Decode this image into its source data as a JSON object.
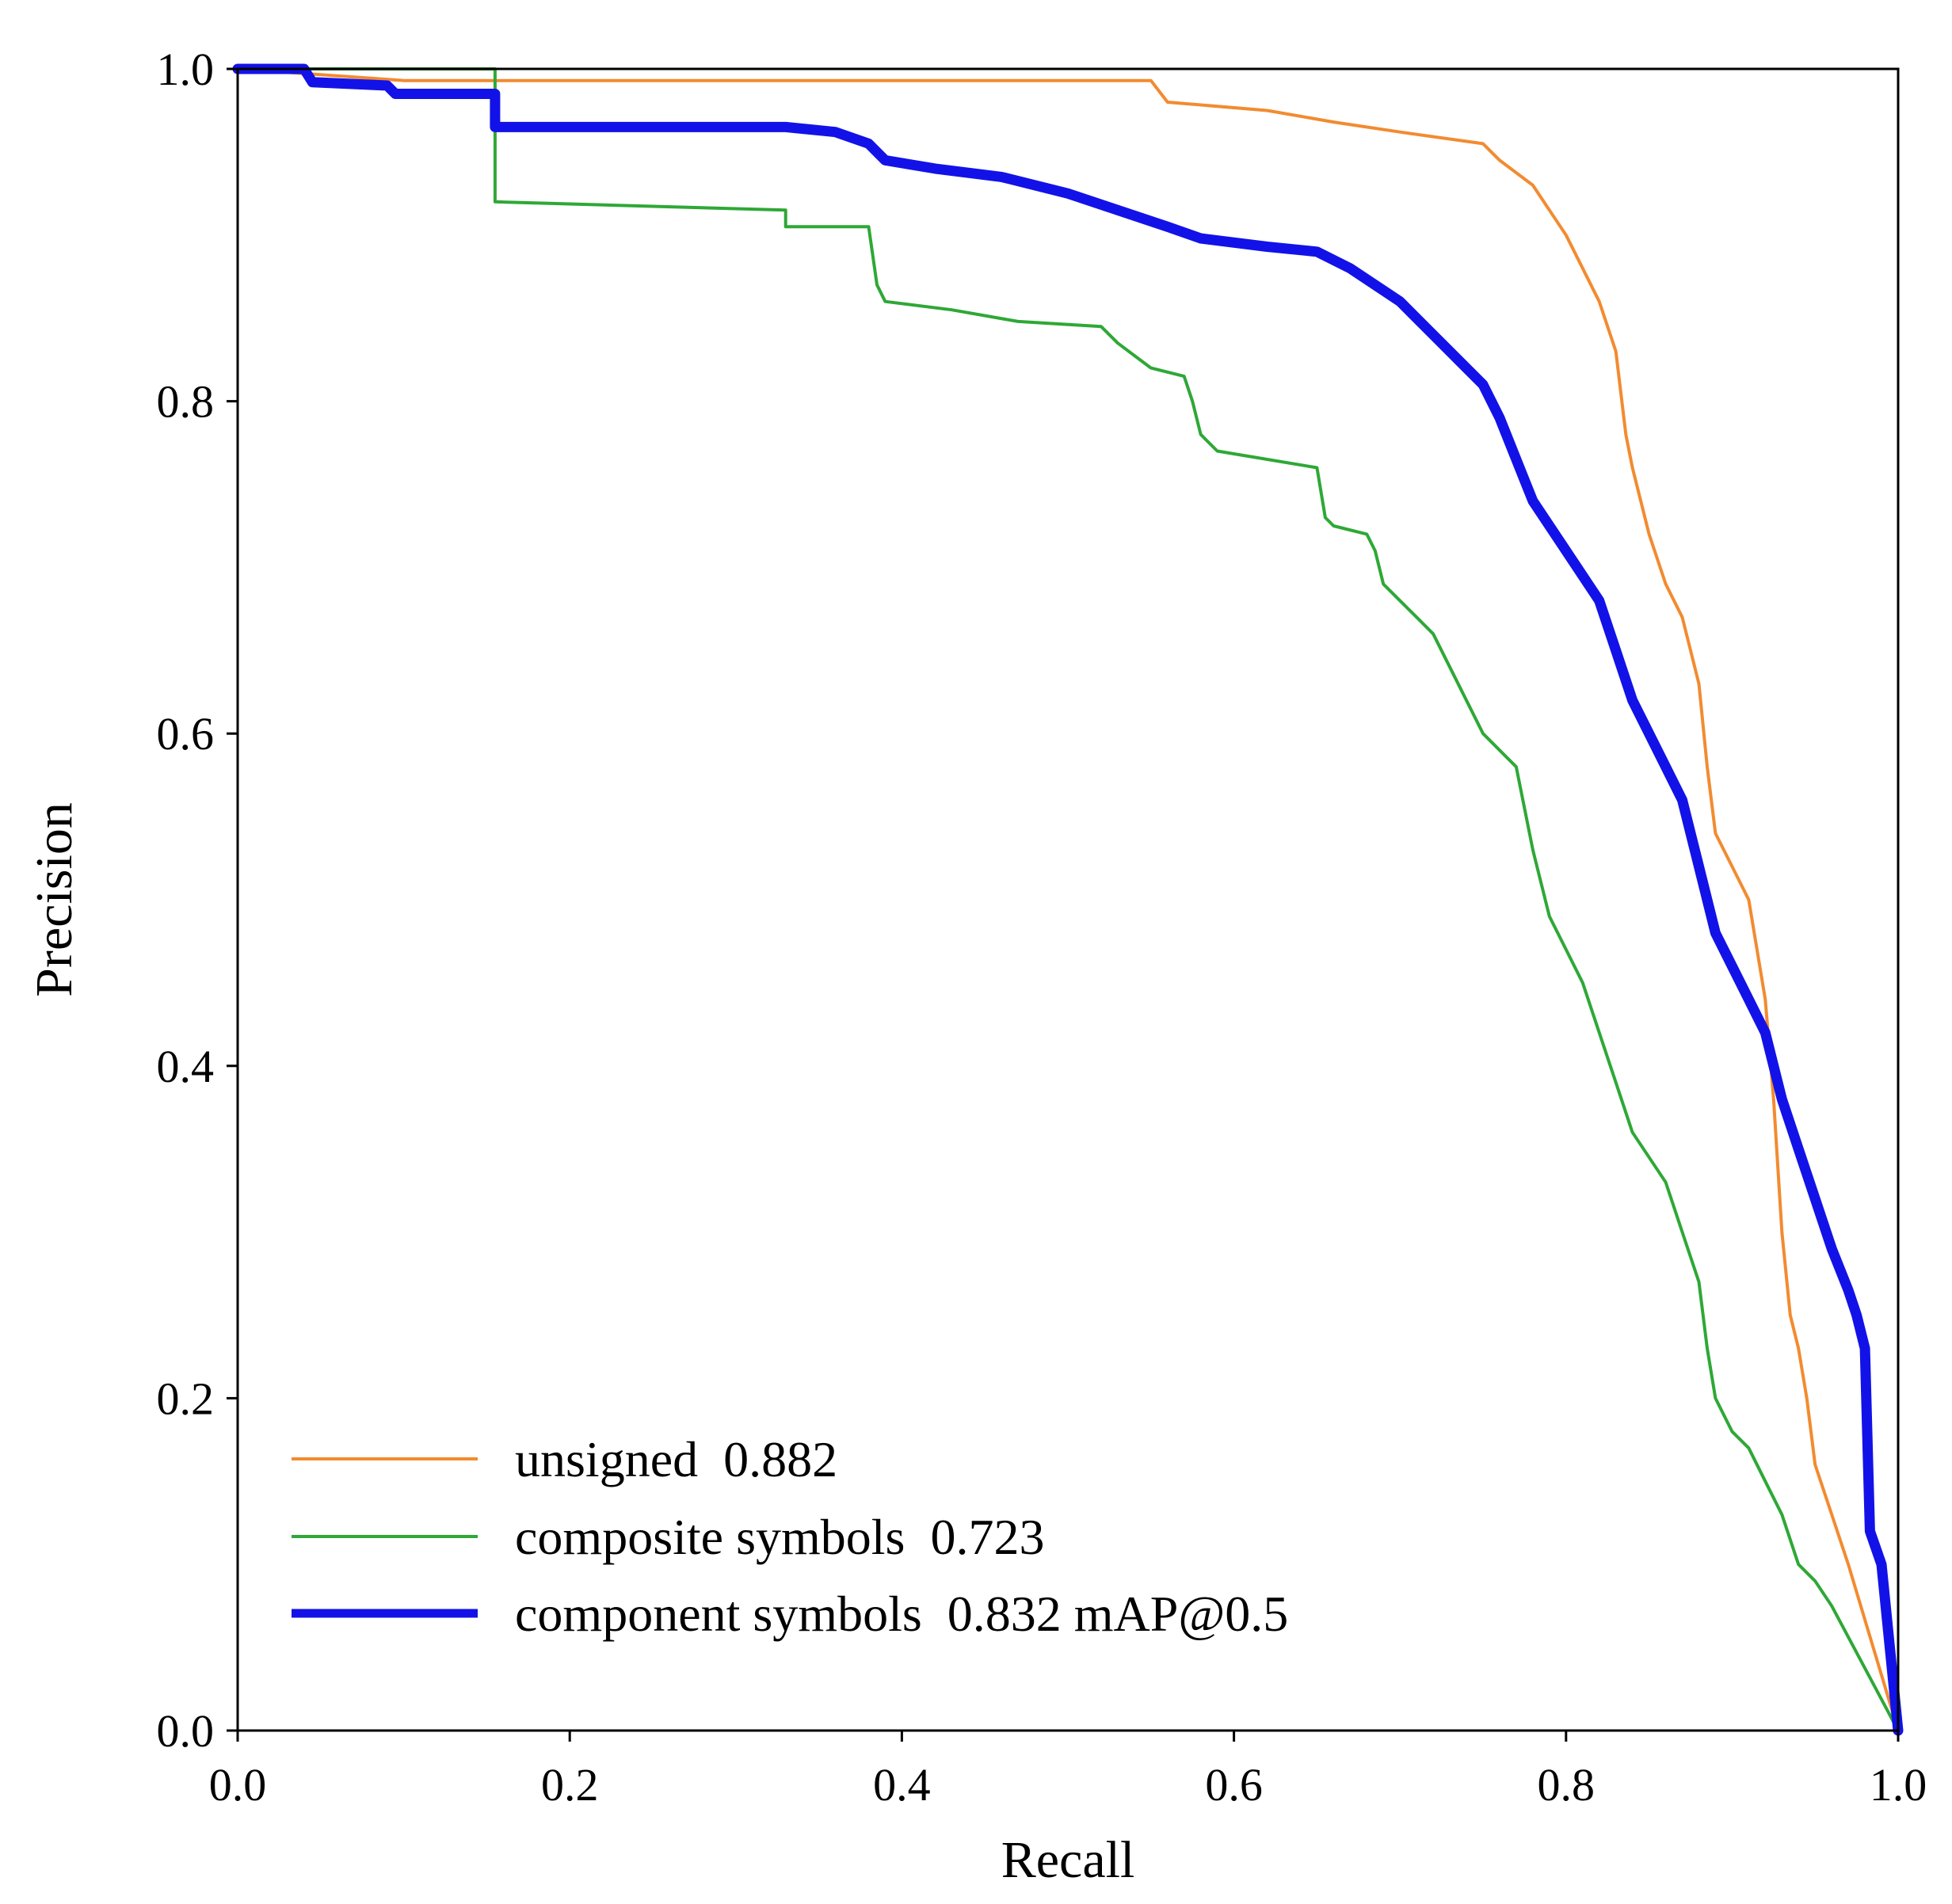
{
  "chart_data": {
    "type": "line",
    "title": "",
    "xlabel": "Recall",
    "ylabel": "Precision",
    "xlim": [
      0,
      1
    ],
    "ylim": [
      0,
      1
    ],
    "xticks": [
      "0.0",
      "0.2",
      "0.4",
      "0.6",
      "0.8",
      "1.0"
    ],
    "yticks": [
      "0.0",
      "0.2",
      "0.4",
      "0.6",
      "0.8",
      "1.0"
    ],
    "grid": false,
    "legend_position": "bottom-left",
    "series": [
      {
        "name": "unsigned",
        "label": "unsigned  0.882",
        "color": "#f28b30",
        "width": "thin",
        "points": [
          [
            0,
            1.0
          ],
          [
            0.1,
            0.993
          ],
          [
            0.55,
            0.993
          ],
          [
            0.56,
            0.98
          ],
          [
            0.62,
            0.975
          ],
          [
            0.66,
            0.968
          ],
          [
            0.7,
            0.962
          ],
          [
            0.75,
            0.955
          ],
          [
            0.76,
            0.945
          ],
          [
            0.78,
            0.93
          ],
          [
            0.79,
            0.915
          ],
          [
            0.8,
            0.9
          ],
          [
            0.81,
            0.88
          ],
          [
            0.82,
            0.86
          ],
          [
            0.83,
            0.83
          ],
          [
            0.836,
            0.78
          ],
          [
            0.84,
            0.76
          ],
          [
            0.85,
            0.72
          ],
          [
            0.86,
            0.69
          ],
          [
            0.87,
            0.67
          ],
          [
            0.88,
            0.63
          ],
          [
            0.885,
            0.58
          ],
          [
            0.89,
            0.54
          ],
          [
            0.9,
            0.52
          ],
          [
            0.91,
            0.5
          ],
          [
            0.92,
            0.44
          ],
          [
            0.925,
            0.38
          ],
          [
            0.93,
            0.3
          ],
          [
            0.935,
            0.25
          ],
          [
            0.94,
            0.23
          ],
          [
            0.945,
            0.2
          ],
          [
            0.95,
            0.16
          ],
          [
            0.96,
            0.13
          ],
          [
            0.97,
            0.1
          ],
          [
            1.0,
            0.0
          ]
        ]
      },
      {
        "name": "composite symbols",
        "label": "composite symbols  0.723",
        "color": "#2ea836",
        "width": "thin",
        "points": [
          [
            0,
            1.0
          ],
          [
            0.155,
            1.0
          ],
          [
            0.155,
            0.92
          ],
          [
            0.33,
            0.915
          ],
          [
            0.33,
            0.905
          ],
          [
            0.38,
            0.905
          ],
          [
            0.385,
            0.87
          ],
          [
            0.39,
            0.86
          ],
          [
            0.43,
            0.855
          ],
          [
            0.47,
            0.848
          ],
          [
            0.52,
            0.845
          ],
          [
            0.53,
            0.835
          ],
          [
            0.55,
            0.82
          ],
          [
            0.57,
            0.815
          ],
          [
            0.575,
            0.8
          ],
          [
            0.58,
            0.78
          ],
          [
            0.59,
            0.77
          ],
          [
            0.65,
            0.76
          ],
          [
            0.655,
            0.73
          ],
          [
            0.66,
            0.725
          ],
          [
            0.68,
            0.72
          ],
          [
            0.685,
            0.71
          ],
          [
            0.69,
            0.69
          ],
          [
            0.7,
            0.68
          ],
          [
            0.71,
            0.67
          ],
          [
            0.72,
            0.66
          ],
          [
            0.73,
            0.64
          ],
          [
            0.75,
            0.6
          ],
          [
            0.77,
            0.58
          ],
          [
            0.78,
            0.53
          ],
          [
            0.79,
            0.49
          ],
          [
            0.8,
            0.47
          ],
          [
            0.81,
            0.45
          ],
          [
            0.82,
            0.42
          ],
          [
            0.83,
            0.39
          ],
          [
            0.84,
            0.36
          ],
          [
            0.85,
            0.345
          ],
          [
            0.86,
            0.33
          ],
          [
            0.87,
            0.3
          ],
          [
            0.88,
            0.27
          ],
          [
            0.885,
            0.23
          ],
          [
            0.89,
            0.2
          ],
          [
            0.9,
            0.18
          ],
          [
            0.91,
            0.17
          ],
          [
            0.92,
            0.15
          ],
          [
            0.93,
            0.13
          ],
          [
            0.94,
            0.1
          ],
          [
            0.95,
            0.09
          ],
          [
            0.96,
            0.075
          ],
          [
            1.0,
            0.0
          ]
        ]
      },
      {
        "name": "component symbols",
        "label": "component symbols  0.832 mAP@0.5",
        "color": "#1212e8",
        "width": "thick",
        "points": [
          [
            0,
            1.0
          ],
          [
            0.04,
            1.0
          ],
          [
            0.045,
            0.992
          ],
          [
            0.09,
            0.99
          ],
          [
            0.095,
            0.985
          ],
          [
            0.155,
            0.985
          ],
          [
            0.155,
            0.965
          ],
          [
            0.33,
            0.965
          ],
          [
            0.36,
            0.962
          ],
          [
            0.38,
            0.955
          ],
          [
            0.39,
            0.945
          ],
          [
            0.42,
            0.94
          ],
          [
            0.46,
            0.935
          ],
          [
            0.5,
            0.925
          ],
          [
            0.53,
            0.915
          ],
          [
            0.56,
            0.905
          ],
          [
            0.58,
            0.898
          ],
          [
            0.62,
            0.893
          ],
          [
            0.65,
            0.89
          ],
          [
            0.67,
            0.88
          ],
          [
            0.7,
            0.86
          ],
          [
            0.72,
            0.84
          ],
          [
            0.74,
            0.82
          ],
          [
            0.75,
            0.81
          ],
          [
            0.76,
            0.79
          ],
          [
            0.77,
            0.765
          ],
          [
            0.78,
            0.74
          ],
          [
            0.8,
            0.71
          ],
          [
            0.82,
            0.68
          ],
          [
            0.83,
            0.65
          ],
          [
            0.84,
            0.62
          ],
          [
            0.86,
            0.58
          ],
          [
            0.87,
            0.56
          ],
          [
            0.88,
            0.52
          ],
          [
            0.89,
            0.48
          ],
          [
            0.9,
            0.46
          ],
          [
            0.91,
            0.44
          ],
          [
            0.92,
            0.42
          ],
          [
            0.93,
            0.38
          ],
          [
            0.94,
            0.35
          ],
          [
            0.95,
            0.32
          ],
          [
            0.96,
            0.29
          ],
          [
            0.97,
            0.265
          ],
          [
            0.975,
            0.25
          ],
          [
            0.98,
            0.23
          ],
          [
            0.983,
            0.12
          ],
          [
            0.99,
            0.1
          ],
          [
            0.995,
            0.05
          ],
          [
            1.0,
            0.0
          ]
        ]
      }
    ]
  }
}
